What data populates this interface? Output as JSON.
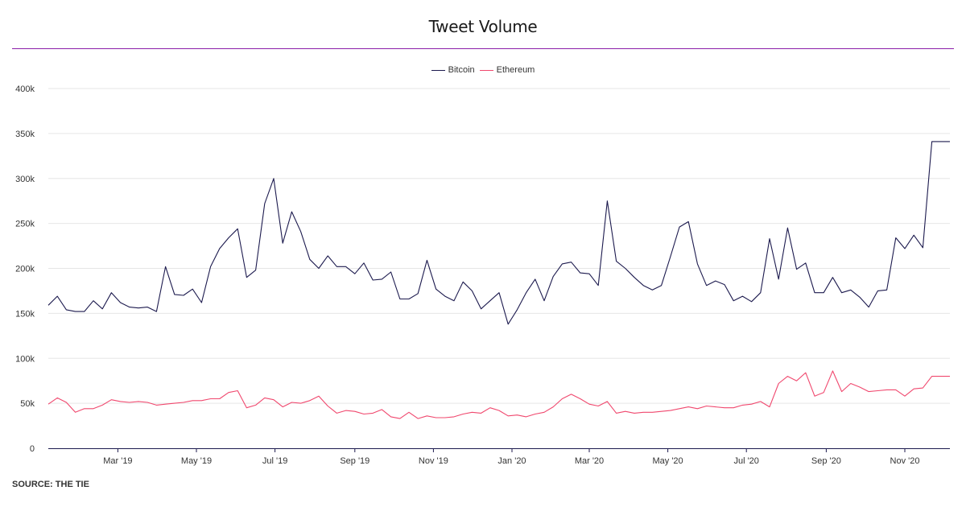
{
  "chart_data": {
    "type": "line",
    "title": "Tweet Volume",
    "source": "SOURCE: THE TIE",
    "xlabel": "",
    "ylabel": "",
    "ylim": [
      0,
      400000
    ],
    "xlim": [
      "2019-01-06",
      "2020-12-06"
    ],
    "y_ticks": [
      {
        "value": 0,
        "label": "0"
      },
      {
        "value": 50000,
        "label": "50k"
      },
      {
        "value": 100000,
        "label": "100k"
      },
      {
        "value": 150000,
        "label": "150k"
      },
      {
        "value": 200000,
        "label": "200k"
      },
      {
        "value": 250000,
        "label": "250k"
      },
      {
        "value": 300000,
        "label": "300k"
      },
      {
        "value": 350000,
        "label": "350k"
      },
      {
        "value": 400000,
        "label": "400k"
      }
    ],
    "x_ticks": [
      {
        "value": "2019-03-01",
        "label": "Mar '19"
      },
      {
        "value": "2019-05-01",
        "label": "May '19"
      },
      {
        "value": "2019-07-01",
        "label": "Jul '19"
      },
      {
        "value": "2019-09-01",
        "label": "Sep '19"
      },
      {
        "value": "2019-11-01",
        "label": "Nov '19"
      },
      {
        "value": "2020-01-01",
        "label": "Jan '20"
      },
      {
        "value": "2020-03-01",
        "label": "Mar '20"
      },
      {
        "value": "2020-05-01",
        "label": "May '20"
      },
      {
        "value": "2020-07-01",
        "label": "Jul '20"
      },
      {
        "value": "2020-09-01",
        "label": "Sep '20"
      },
      {
        "value": "2020-11-01",
        "label": "Nov '20"
      }
    ],
    "grid": true,
    "legend_position": "top-center",
    "x": [
      "2019-01-06",
      "2019-01-13",
      "2019-01-20",
      "2019-01-27",
      "2019-02-03",
      "2019-02-10",
      "2019-02-17",
      "2019-02-24",
      "2019-03-03",
      "2019-03-10",
      "2019-03-17",
      "2019-03-24",
      "2019-03-31",
      "2019-04-07",
      "2019-04-14",
      "2019-04-21",
      "2019-04-28",
      "2019-05-05",
      "2019-05-12",
      "2019-05-19",
      "2019-05-26",
      "2019-06-02",
      "2019-06-09",
      "2019-06-16",
      "2019-06-23",
      "2019-06-30",
      "2019-07-07",
      "2019-07-14",
      "2019-07-21",
      "2019-07-28",
      "2019-08-04",
      "2019-08-11",
      "2019-08-18",
      "2019-08-25",
      "2019-09-01",
      "2019-09-08",
      "2019-09-15",
      "2019-09-22",
      "2019-09-29",
      "2019-10-06",
      "2019-10-13",
      "2019-10-20",
      "2019-10-27",
      "2019-11-03",
      "2019-11-10",
      "2019-11-17",
      "2019-11-24",
      "2019-12-01",
      "2019-12-08",
      "2019-12-15",
      "2019-12-22",
      "2019-12-29",
      "2020-01-05",
      "2020-01-12",
      "2020-01-19",
      "2020-01-26",
      "2020-02-02",
      "2020-02-09",
      "2020-02-16",
      "2020-02-23",
      "2020-03-01",
      "2020-03-08",
      "2020-03-15",
      "2020-03-22",
      "2020-03-29",
      "2020-04-05",
      "2020-04-12",
      "2020-04-19",
      "2020-04-26",
      "2020-05-03",
      "2020-05-10",
      "2020-05-17",
      "2020-05-24",
      "2020-05-31",
      "2020-06-07",
      "2020-06-14",
      "2020-06-21",
      "2020-06-28",
      "2020-07-05",
      "2020-07-12",
      "2020-07-19",
      "2020-07-26",
      "2020-08-02",
      "2020-08-09",
      "2020-08-16",
      "2020-08-23",
      "2020-08-30",
      "2020-09-06",
      "2020-09-13",
      "2020-09-20",
      "2020-09-27",
      "2020-10-04",
      "2020-10-11",
      "2020-10-18",
      "2020-10-25",
      "2020-11-01",
      "2020-11-08",
      "2020-11-15",
      "2020-11-22",
      "2020-11-29",
      "2020-12-06"
    ],
    "series": [
      {
        "name": "Bitcoin",
        "color": "#1c1a4e",
        "values": [
          159000,
          169000,
          154000,
          152000,
          152000,
          164000,
          155000,
          173000,
          162000,
          157000,
          156000,
          157000,
          152000,
          202000,
          171000,
          170000,
          177000,
          162000,
          202000,
          222000,
          234000,
          244000,
          190000,
          198000,
          272000,
          300000,
          228000,
          263000,
          241000,
          210000,
          200000,
          214000,
          202000,
          202000,
          194000,
          206000,
          187000,
          188000,
          196000,
          166000,
          166000,
          172000,
          209000,
          177000,
          169000,
          164000,
          185000,
          175000,
          155000,
          164000,
          173000,
          138000,
          154000,
          173000,
          188000,
          164000,
          191000,
          205000,
          207000,
          195000,
          194000,
          181000,
          275000,
          208000,
          200000,
          190000,
          181000,
          176000,
          181000,
          213000,
          246000,
          252000,
          205000,
          181000,
          186000,
          182000,
          164000,
          169000,
          163000,
          173000,
          233000,
          188000,
          245000,
          199000,
          206000,
          173000,
          173000,
          190000,
          173000,
          176000,
          168000,
          157000,
          175000,
          176000,
          234000,
          222000,
          237000,
          223000,
          341000,
          341000,
          341000
        ]
      },
      {
        "name": "Ethereum",
        "color": "#f0486e",
        "values": [
          49000,
          56000,
          51000,
          40000,
          44000,
          44000,
          48000,
          54000,
          52000,
          51000,
          52000,
          51000,
          48000,
          49000,
          50000,
          51000,
          53000,
          53000,
          55000,
          55000,
          62000,
          64000,
          45000,
          48000,
          56000,
          54000,
          46000,
          51000,
          50000,
          53000,
          58000,
          47000,
          39000,
          42000,
          41000,
          38000,
          39000,
          43000,
          35000,
          33000,
          40000,
          33000,
          36000,
          34000,
          34000,
          35000,
          38000,
          40000,
          39000,
          45000,
          42000,
          36000,
          37000,
          35000,
          38000,
          40000,
          46000,
          55000,
          60000,
          55000,
          49000,
          47000,
          52000,
          39000,
          41000,
          39000,
          40000,
          40000,
          41000,
          42000,
          44000,
          46000,
          44000,
          47000,
          46000,
          45000,
          45000,
          48000,
          49000,
          52000,
          46000,
          72000,
          80000,
          75000,
          84000,
          58000,
          62000,
          86000,
          63000,
          72000,
          68000,
          63000,
          64000,
          65000,
          65000,
          58000,
          66000,
          67000,
          80000,
          80000,
          80000
        ]
      }
    ]
  }
}
